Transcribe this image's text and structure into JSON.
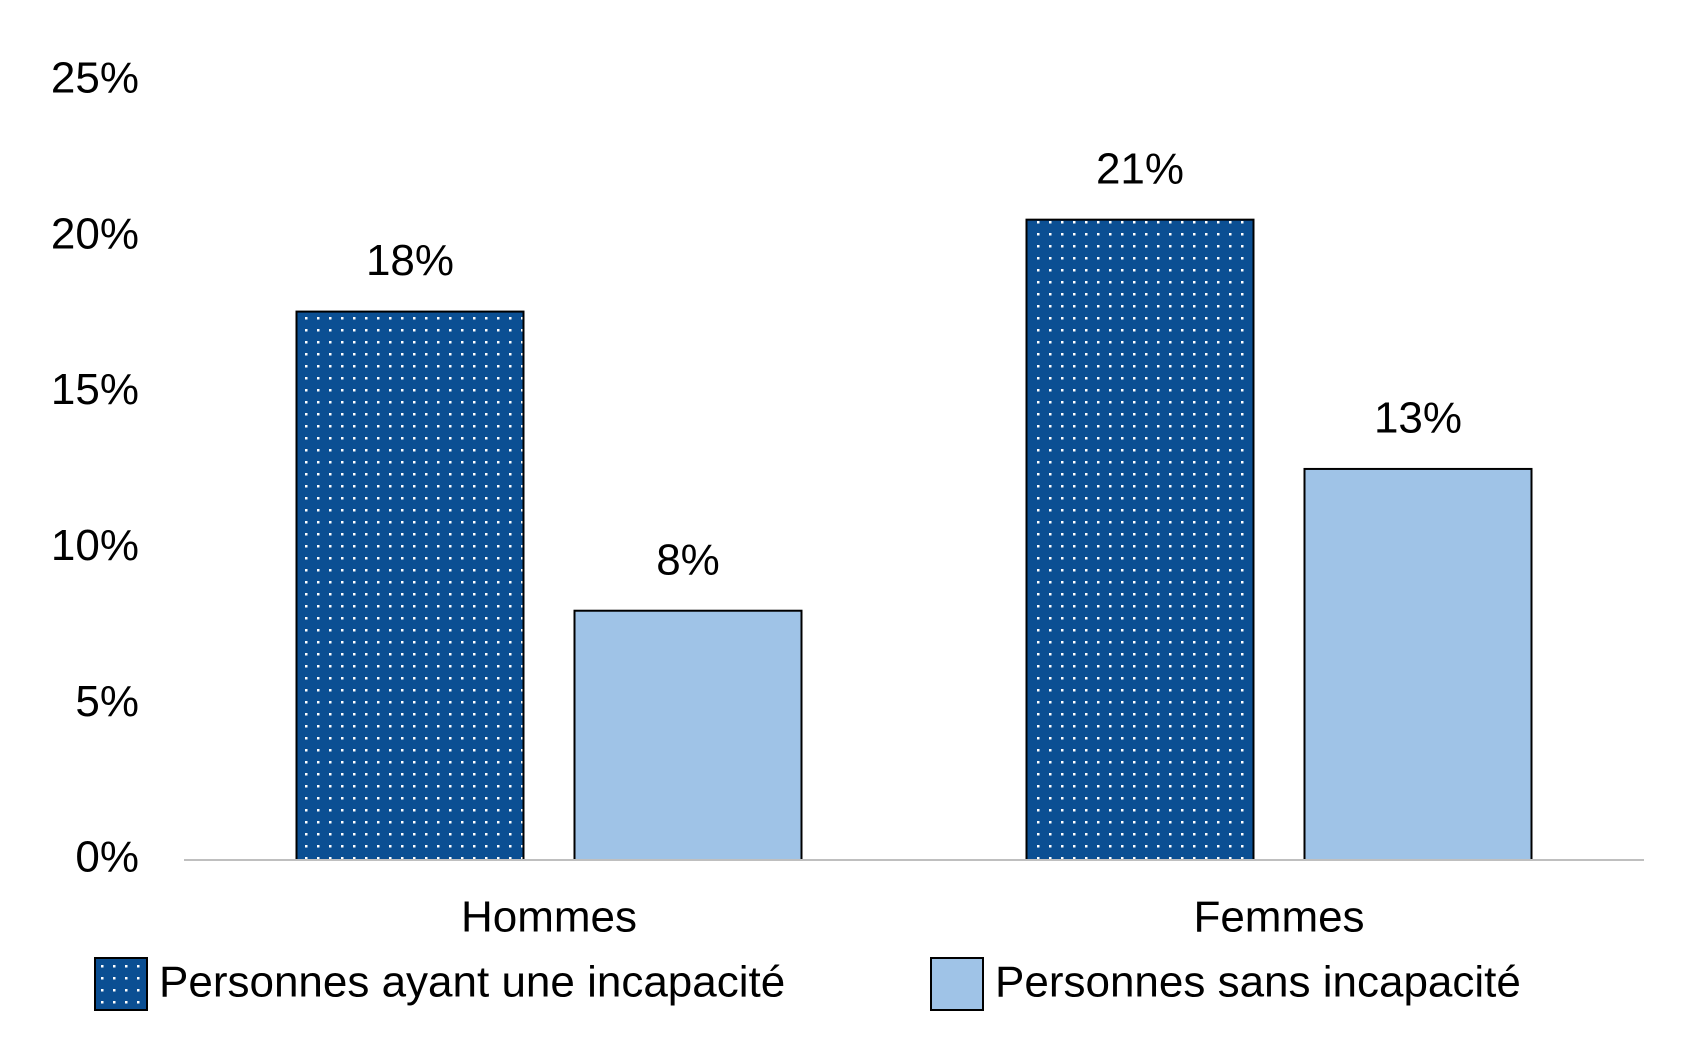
{
  "chart_data": {
    "type": "bar",
    "categories": [
      "Hommes",
      "Femmes"
    ],
    "series": [
      {
        "name": "Personnes ayant une incapacité",
        "color": "#0b4f93",
        "pattern": "dots",
        "values": [
          17.6,
          20.55
        ],
        "value_labels": [
          "18%",
          "21%"
        ]
      },
      {
        "name": "Personnes sans incapacité",
        "color": "#9fc3e7",
        "values": [
          8.0,
          12.55
        ],
        "value_labels": [
          "8%",
          "13%"
        ]
      }
    ],
    "ylim": [
      0,
      25
    ],
    "yticks": [
      {
        "value": 0,
        "label": "0%"
      },
      {
        "value": 5,
        "label": "5%"
      },
      {
        "value": 10,
        "label": "10%"
      },
      {
        "value": 15,
        "label": "15%"
      },
      {
        "value": 20,
        "label": "20%"
      },
      {
        "value": 25,
        "label": "25%"
      }
    ],
    "grid": false,
    "legend": "bottom"
  }
}
